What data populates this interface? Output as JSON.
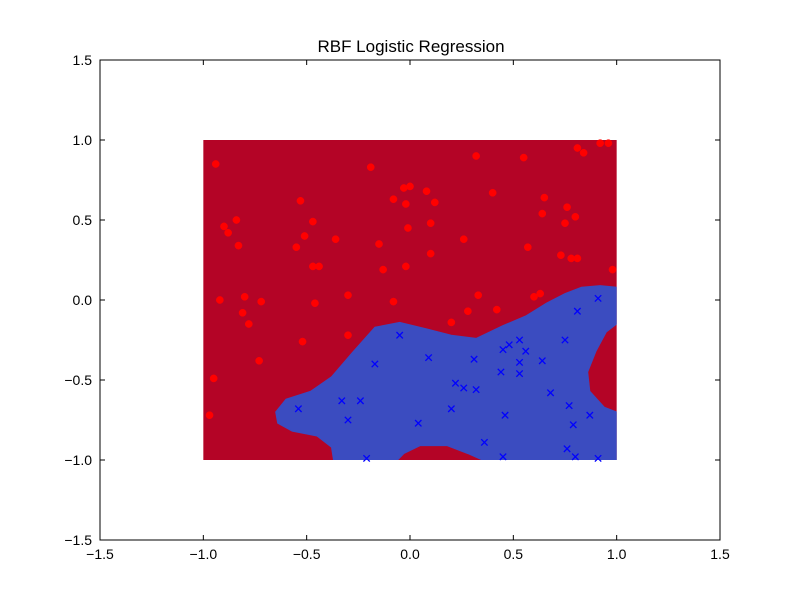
{
  "chart_data": {
    "type": "scatter",
    "title": "RBF Logistic Regression",
    "xlabel": "",
    "ylabel": "",
    "xlim": [
      -1.5,
      1.5
    ],
    "ylim": [
      -1.5,
      1.5
    ],
    "x_ticks": [
      -1.5,
      -1.0,
      -0.5,
      0.0,
      0.5,
      1.0,
      1.5
    ],
    "y_ticks": [
      -1.5,
      -1.0,
      -0.5,
      0.0,
      0.5,
      1.0,
      1.5
    ],
    "x_tick_labels": [
      "−1.5",
      "−1.0",
      "−0.5",
      "0.0",
      "0.5",
      "1.0",
      "1.5"
    ],
    "y_tick_labels": [
      "−1.5",
      "−1.0",
      "−0.5",
      "0.0",
      "0.5",
      "1.0",
      "1.5"
    ],
    "grid": false,
    "decision_region": {
      "x_range": [
        -1.0,
        1.0
      ],
      "y_range": [
        -1.0,
        1.0
      ],
      "class_0_color": "#b40426",
      "class_1_color": "#3b4cc0",
      "class_1_boundary": [
        [
          -0.65,
          -0.7
        ],
        [
          -0.6,
          -0.62
        ],
        [
          -0.48,
          -0.57
        ],
        [
          -0.38,
          -0.48
        ],
        [
          -0.28,
          -0.33
        ],
        [
          -0.17,
          -0.17
        ],
        [
          -0.05,
          -0.14
        ],
        [
          0.08,
          -0.18
        ],
        [
          0.2,
          -0.22
        ],
        [
          0.32,
          -0.24
        ],
        [
          0.45,
          -0.16
        ],
        [
          0.56,
          -0.1
        ],
        [
          0.66,
          -0.02
        ],
        [
          0.75,
          0.04
        ],
        [
          0.83,
          0.08
        ],
        [
          0.92,
          0.09
        ],
        [
          1.0,
          0.08
        ],
        [
          1.0,
          -0.15
        ],
        [
          0.95,
          -0.2
        ],
        [
          0.9,
          -0.32
        ],
        [
          0.86,
          -0.45
        ],
        [
          0.87,
          -0.57
        ],
        [
          0.94,
          -0.67
        ],
        [
          1.0,
          -0.7
        ],
        [
          1.0,
          -1.0
        ],
        [
          0.35,
          -1.0
        ],
        [
          0.28,
          -0.96
        ],
        [
          0.18,
          -0.91
        ],
        [
          0.05,
          -0.91
        ],
        [
          -0.03,
          -0.96
        ],
        [
          -0.06,
          -1.0
        ],
        [
          -0.37,
          -1.0
        ],
        [
          -0.38,
          -0.92
        ],
        [
          -0.45,
          -0.85
        ],
        [
          -0.57,
          -0.82
        ],
        [
          -0.64,
          -0.77
        ]
      ]
    },
    "series": [
      {
        "marker": "circle",
        "color": "#ff0000",
        "points": [
          [
            -0.94,
            0.85
          ],
          [
            -0.88,
            0.42
          ],
          [
            -0.84,
            0.5
          ],
          [
            -0.83,
            0.34
          ],
          [
            -0.9,
            0.46
          ],
          [
            -0.92,
            0.0
          ],
          [
            -0.8,
            0.02
          ],
          [
            -0.81,
            -0.08
          ],
          [
            -0.78,
            -0.15
          ],
          [
            -0.72,
            -0.01
          ],
          [
            -0.73,
            -0.38
          ],
          [
            -0.95,
            -0.49
          ],
          [
            -0.97,
            -0.72
          ],
          [
            -0.53,
            0.62
          ],
          [
            -0.55,
            0.33
          ],
          [
            -0.51,
            0.4
          ],
          [
            -0.47,
            0.49
          ],
          [
            -0.47,
            0.21
          ],
          [
            -0.44,
            0.21
          ],
          [
            -0.46,
            -0.02
          ],
          [
            -0.52,
            -0.26
          ],
          [
            -0.36,
            0.38
          ],
          [
            -0.3,
            0.03
          ],
          [
            -0.3,
            -0.22
          ],
          [
            -0.19,
            0.83
          ],
          [
            -0.15,
            0.35
          ],
          [
            -0.13,
            0.19
          ],
          [
            -0.08,
            0.63
          ],
          [
            -0.08,
            -0.01
          ],
          [
            -0.03,
            0.7
          ],
          [
            -0.02,
            0.6
          ],
          [
            -0.01,
            0.45
          ],
          [
            -0.02,
            0.21
          ],
          [
            0.0,
            0.71
          ],
          [
            0.08,
            0.68
          ],
          [
            0.1,
            0.48
          ],
          [
            0.1,
            0.29
          ],
          [
            0.12,
            0.61
          ],
          [
            0.2,
            -0.14
          ],
          [
            0.26,
            0.38
          ],
          [
            0.28,
            -0.07
          ],
          [
            0.32,
            0.9
          ],
          [
            0.33,
            0.03
          ],
          [
            0.4,
            0.67
          ],
          [
            0.42,
            -0.06
          ],
          [
            0.55,
            0.89
          ],
          [
            0.57,
            0.33
          ],
          [
            0.6,
            0.02
          ],
          [
            0.63,
            0.04
          ],
          [
            0.64,
            0.54
          ],
          [
            0.65,
            0.64
          ],
          [
            0.73,
            0.28
          ],
          [
            0.75,
            0.48
          ],
          [
            0.76,
            0.58
          ],
          [
            0.78,
            0.26
          ],
          [
            0.8,
            0.52
          ],
          [
            0.81,
            0.26
          ],
          [
            0.81,
            0.95
          ],
          [
            0.84,
            0.92
          ],
          [
            0.92,
            0.98
          ],
          [
            0.96,
            0.98
          ],
          [
            0.98,
            0.19
          ]
        ]
      },
      {
        "marker": "x",
        "color": "#0000ff",
        "points": [
          [
            -0.54,
            -0.68
          ],
          [
            -0.33,
            -0.63
          ],
          [
            -0.3,
            -0.75
          ],
          [
            -0.24,
            -0.63
          ],
          [
            -0.17,
            -0.4
          ],
          [
            -0.21,
            -0.99
          ],
          [
            -0.05,
            -0.22
          ],
          [
            0.04,
            -0.77
          ],
          [
            0.09,
            -0.36
          ],
          [
            0.2,
            -0.68
          ],
          [
            0.22,
            -0.52
          ],
          [
            0.26,
            -0.55
          ],
          [
            0.31,
            -0.37
          ],
          [
            0.32,
            -0.56
          ],
          [
            0.36,
            -0.89
          ],
          [
            0.44,
            -0.45
          ],
          [
            0.45,
            -0.31
          ],
          [
            0.46,
            -0.72
          ],
          [
            0.48,
            -0.28
          ],
          [
            0.45,
            -0.98
          ],
          [
            0.53,
            -0.25
          ],
          [
            0.53,
            -0.39
          ],
          [
            0.53,
            -0.46
          ],
          [
            0.56,
            -0.32
          ],
          [
            0.64,
            -0.38
          ],
          [
            0.68,
            -0.58
          ],
          [
            0.75,
            -0.25
          ],
          [
            0.77,
            -0.66
          ],
          [
            0.76,
            -0.93
          ],
          [
            0.79,
            -0.78
          ],
          [
            0.8,
            -0.98
          ],
          [
            0.81,
            -0.07
          ],
          [
            0.87,
            -0.72
          ],
          [
            0.91,
            0.01
          ],
          [
            0.91,
            -0.99
          ]
        ]
      }
    ]
  }
}
